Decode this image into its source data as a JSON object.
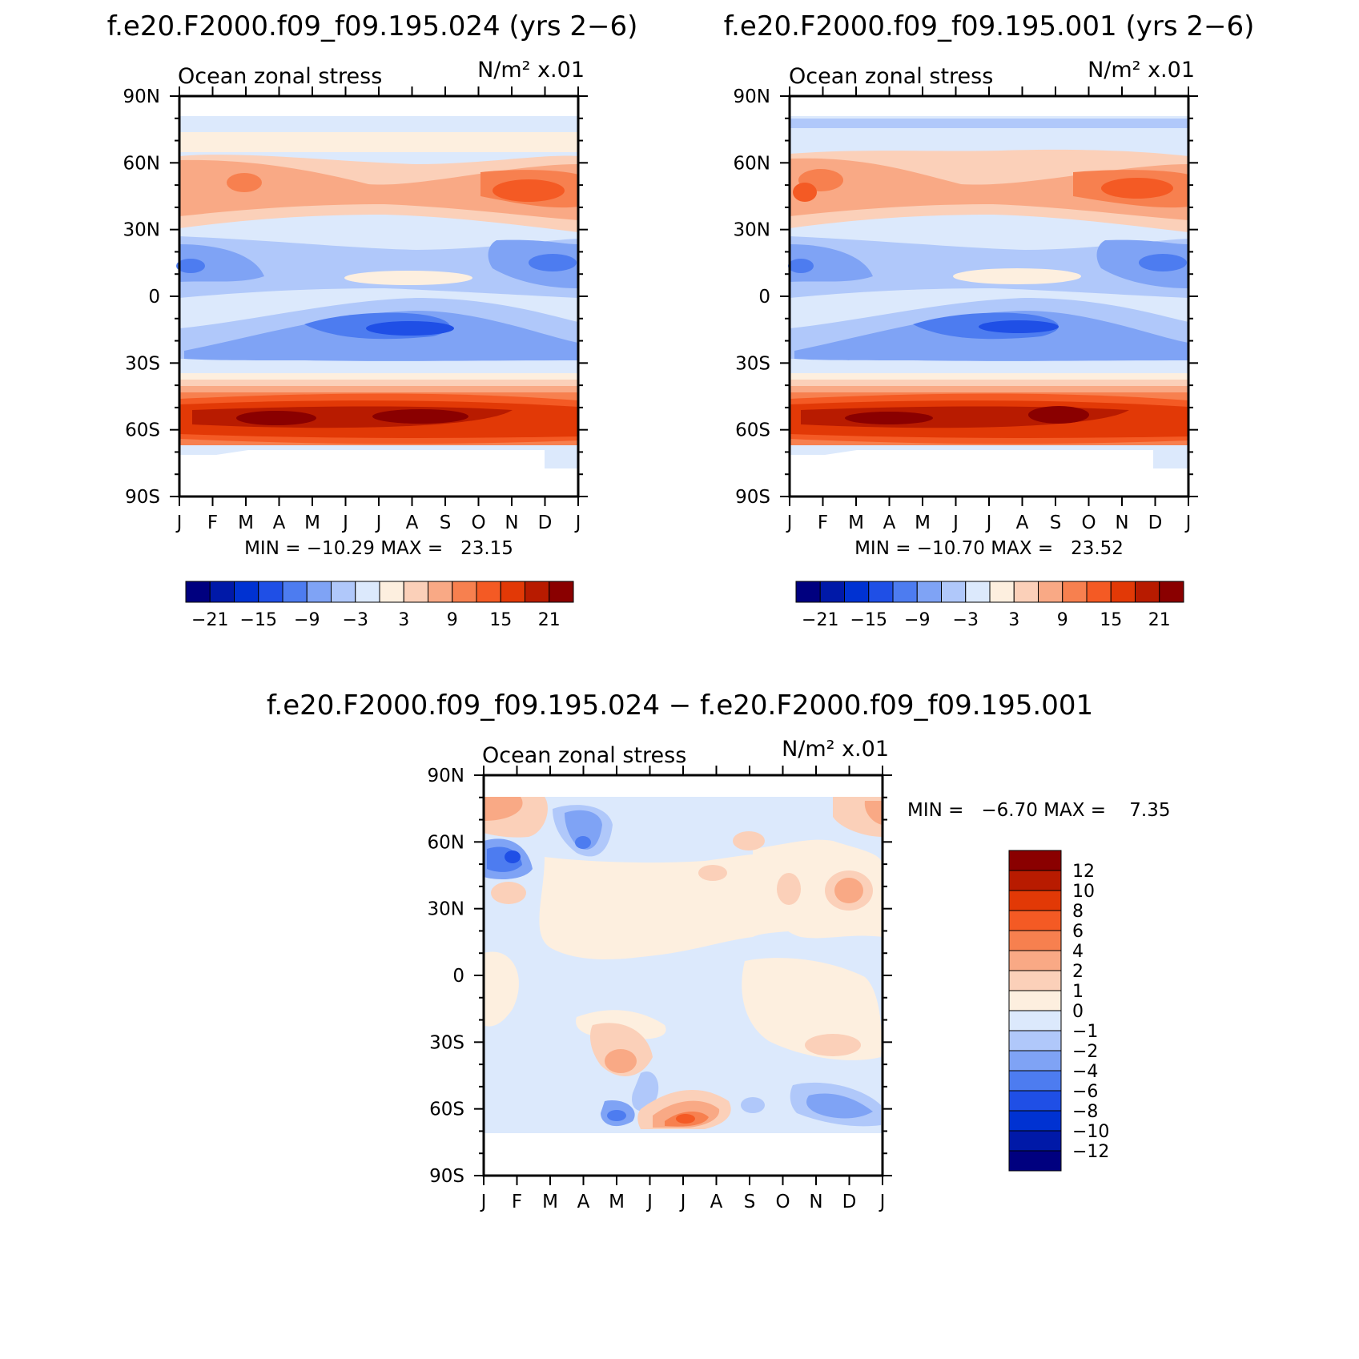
{
  "panels": [
    {
      "title": "f.e20.F2000.f09_f09.195.024 (yrs 2−6)",
      "left_label": "Ocean zonal stress",
      "right_label": "N/m² x.01",
      "minmax": "MIN = −10.29 MAX =   23.15"
    },
    {
      "title": "f.e20.F2000.f09_f09.195.001 (yrs 2−6)",
      "left_label": "Ocean zonal stress",
      "right_label": "N/m² x.01",
      "minmax": "MIN = −10.70 MAX =   23.52"
    },
    {
      "title": "f.e20.F2000.f09_f09.195.024 − f.e20.F2000.f09_f09.195.001",
      "left_label": "Ocean zonal stress",
      "right_label": "N/m² x.01",
      "minmax": "MIN =   −6.70 MAX =    7.35"
    }
  ],
  "chart_data": [
    {
      "type": "heatmap",
      "title": "f.e20.F2000.f09_f09.195.024 (yrs 2−6)",
      "field": "Ocean zonal stress",
      "units": "N/m² x.01",
      "x_ticks": [
        "J",
        "F",
        "M",
        "A",
        "M",
        "J",
        "J",
        "A",
        "S",
        "O",
        "N",
        "D",
        "J"
      ],
      "y_ticks": [
        "90N",
        "60N",
        "30N",
        "0",
        "30S",
        "60S",
        "90S"
      ],
      "min": -10.29,
      "max": 23.15,
      "colorbar_labels": [
        "−21",
        "−15",
        "−9",
        "−3",
        "3",
        "9",
        "15",
        "21"
      ],
      "colors": [
        "#00007f",
        "#0019a8",
        "#0032d2",
        "#1f4fe6",
        "#4d7cf0",
        "#7fa3f5",
        "#b0c8fa",
        "#dce9fc",
        "#fdefdf",
        "#fbd0b9",
        "#f9a985",
        "#f7804f",
        "#f45a24",
        "#e23906",
        "#b81b00",
        "#8a0000"
      ]
    },
    {
      "type": "heatmap",
      "title": "f.e20.F2000.f09_f09.195.001 (yrs 2−6)",
      "field": "Ocean zonal stress",
      "units": "N/m² x.01",
      "x_ticks": [
        "J",
        "F",
        "M",
        "A",
        "M",
        "J",
        "J",
        "A",
        "S",
        "O",
        "N",
        "D",
        "J"
      ],
      "y_ticks": [
        "90N",
        "60N",
        "30N",
        "0",
        "30S",
        "60S",
        "90S"
      ],
      "min": -10.7,
      "max": 23.52,
      "colorbar_labels": [
        "−21",
        "−15",
        "−9",
        "−3",
        "3",
        "9",
        "15",
        "21"
      ],
      "colors": [
        "#00007f",
        "#0019a8",
        "#0032d2",
        "#1f4fe6",
        "#4d7cf0",
        "#7fa3f5",
        "#b0c8fa",
        "#dce9fc",
        "#fdefdf",
        "#fbd0b9",
        "#f9a985",
        "#f7804f",
        "#f45a24",
        "#e23906",
        "#b81b00",
        "#8a0000"
      ]
    },
    {
      "type": "heatmap",
      "title": "f.e20.F2000.f09_f09.195.024 − f.e20.F2000.f09_f09.195.001",
      "field": "Ocean zonal stress",
      "units": "N/m² x.01",
      "x_ticks": [
        "J",
        "F",
        "M",
        "A",
        "M",
        "J",
        "J",
        "A",
        "S",
        "O",
        "N",
        "D",
        "J"
      ],
      "y_ticks": [
        "90N",
        "60N",
        "30N",
        "0",
        "30S",
        "60S",
        "90S"
      ],
      "min": -6.7,
      "max": 7.35,
      "colorbar_labels": [
        "12",
        "10",
        "8",
        "6",
        "4",
        "2",
        "1",
        "0",
        "−1",
        "−2",
        "−4",
        "−6",
        "−8",
        "−10",
        "−12"
      ],
      "colors": [
        "#8a0000",
        "#b81b00",
        "#e23906",
        "#f45a24",
        "#f7804f",
        "#f9a985",
        "#fbd0b9",
        "#fdefdf",
        "#dce9fc",
        "#b0c8fa",
        "#7fa3f5",
        "#4d7cf0",
        "#1f4fe6",
        "#0032d2",
        "#0019a8",
        "#00007f"
      ]
    }
  ]
}
